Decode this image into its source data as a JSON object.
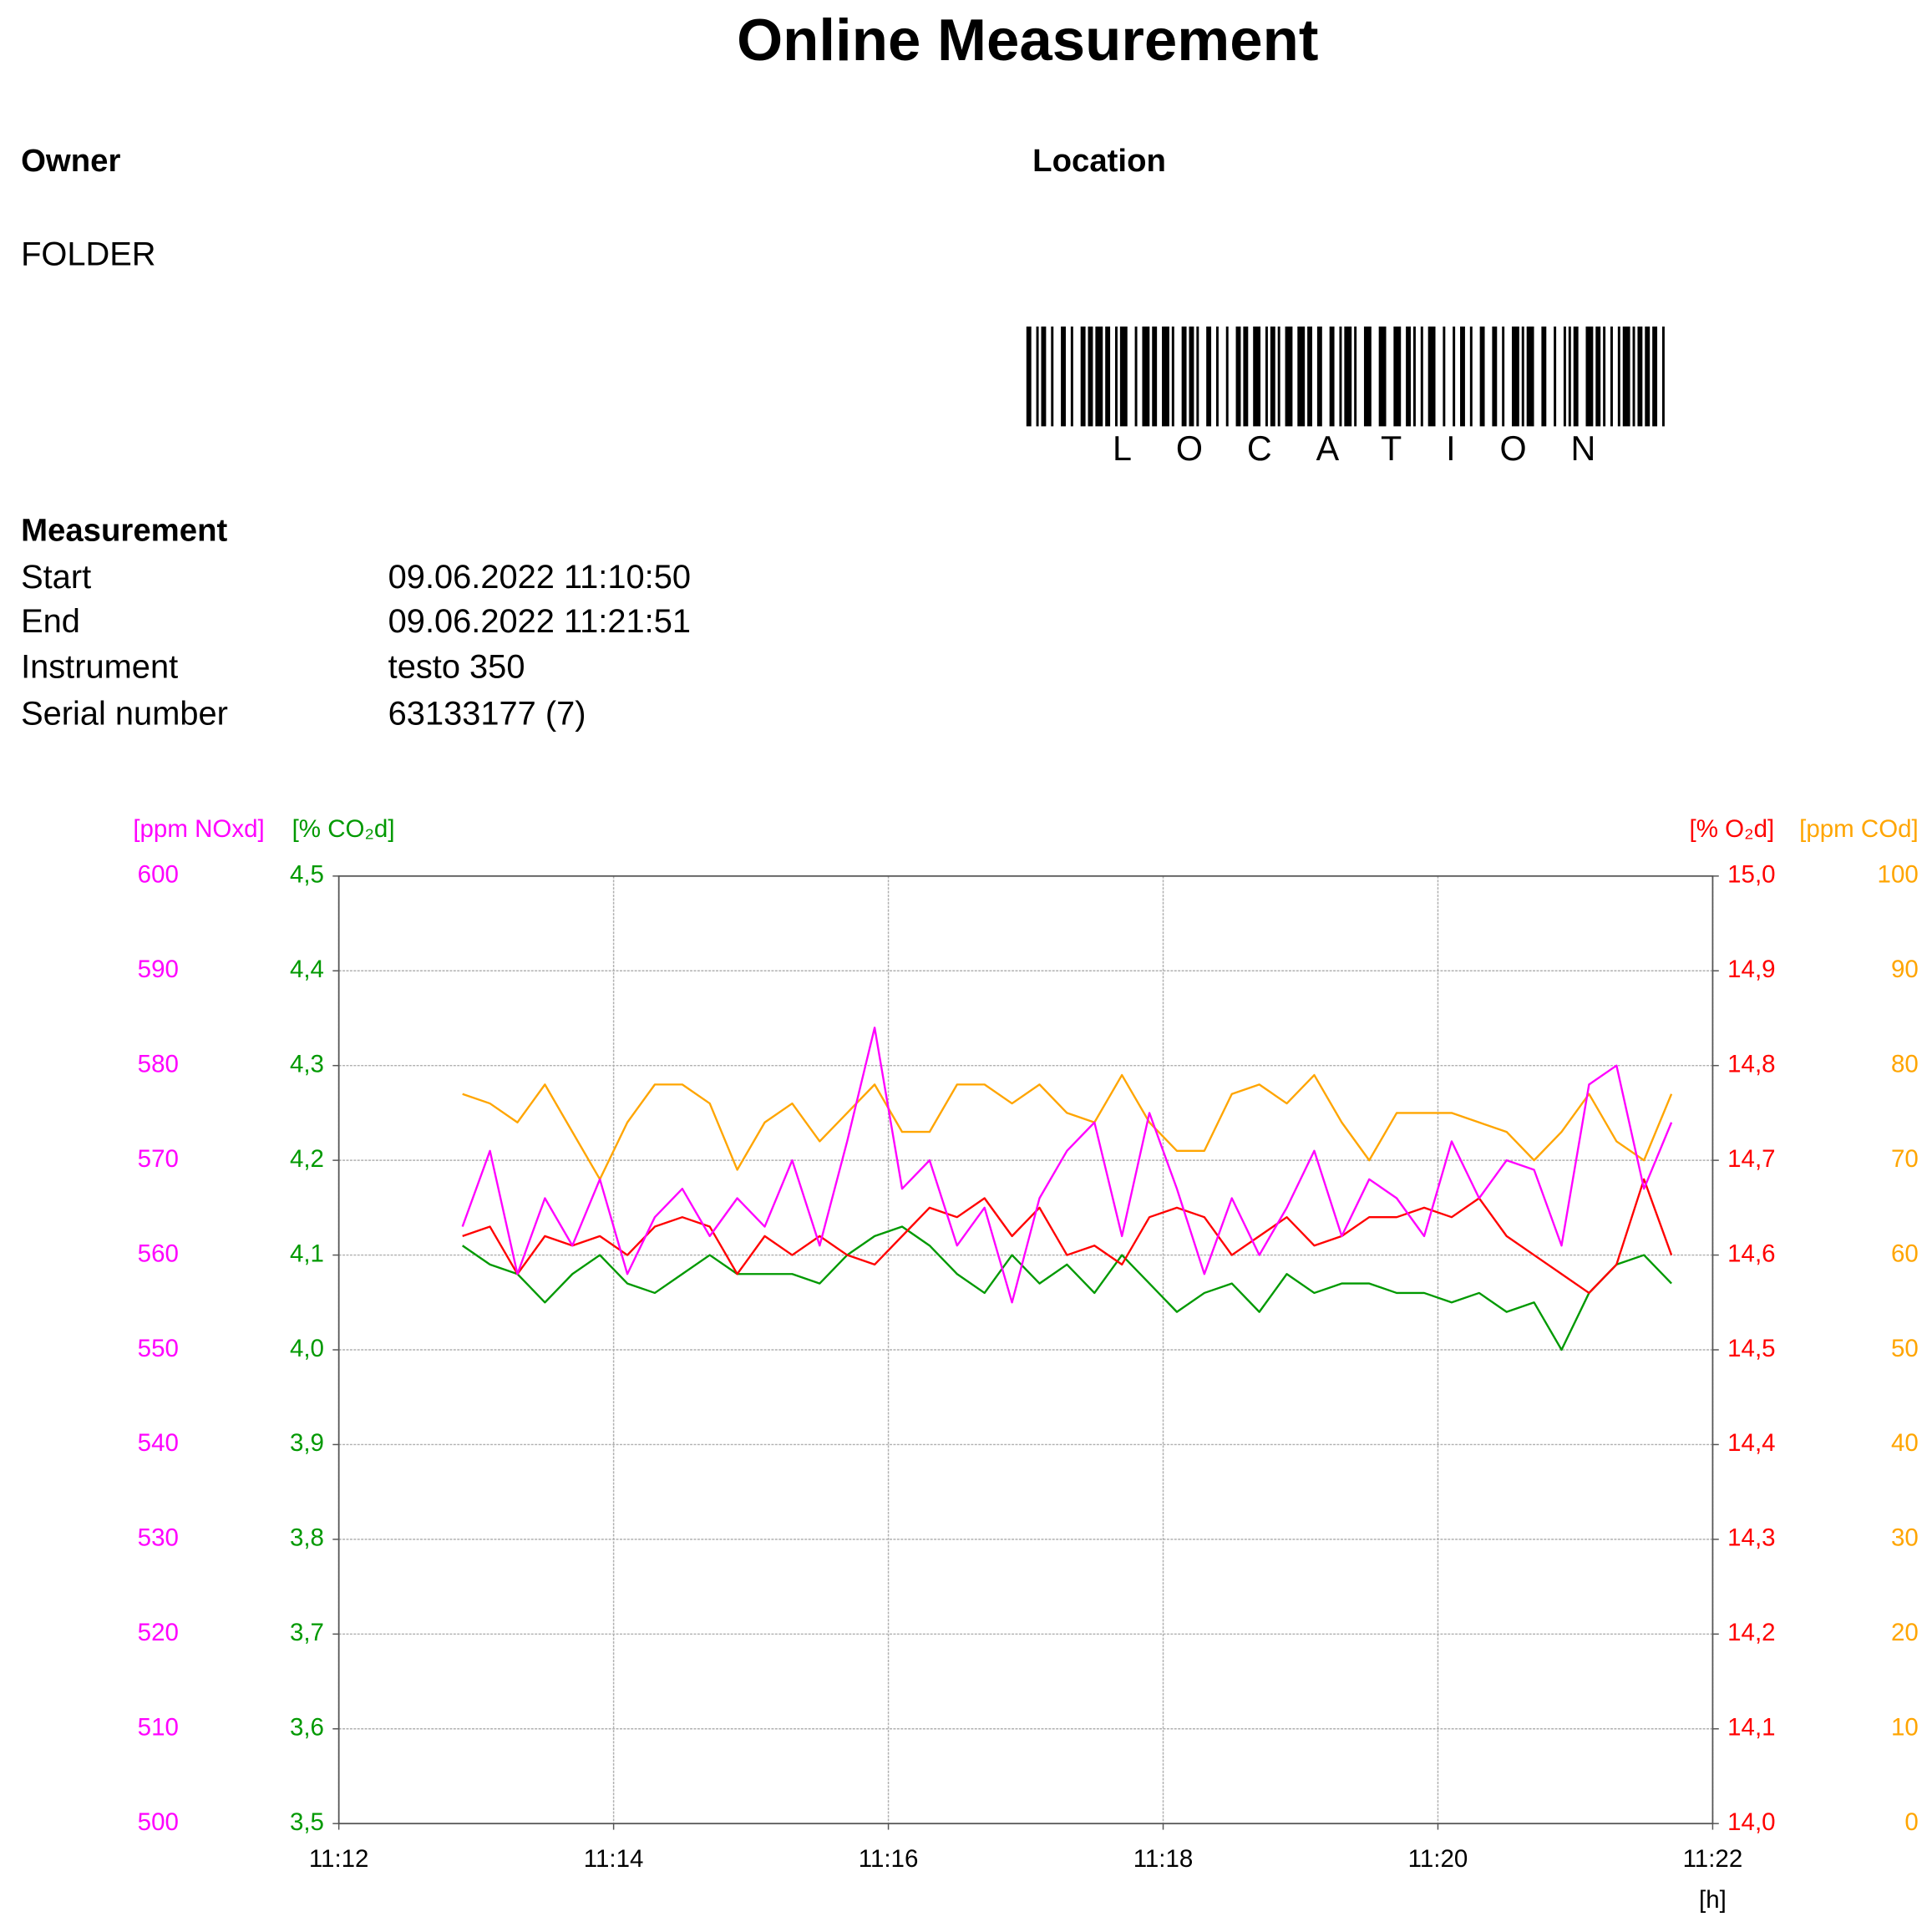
{
  "title": "Online Measurement",
  "owner": {
    "label": "Owner",
    "value": "FOLDER"
  },
  "location": {
    "label": "Location",
    "barcode_text": "LOCATION"
  },
  "measurement": {
    "heading": "Measurement",
    "rows": [
      [
        "Start",
        "09.06.2022 11:10:50"
      ],
      [
        "End",
        "09.06.2022 11:21:51"
      ],
      [
        "Instrument",
        "testo 350"
      ],
      [
        "Serial number",
        "63133177 (7)"
      ]
    ]
  },
  "chart_data": {
    "type": "line",
    "grid": true,
    "xlabel": "[h]",
    "xlim": [
      672,
      682
    ],
    "xticks": [
      {
        "value": 672,
        "label": "11:12"
      },
      {
        "value": 674,
        "label": "11:14"
      },
      {
        "value": 676,
        "label": "11:16"
      },
      {
        "value": 678,
        "label": "11:18"
      },
      {
        "value": 680,
        "label": "11:20"
      },
      {
        "value": 682,
        "label": "11:22"
      }
    ],
    "axes": [
      {
        "label": "[ppm NOxd]",
        "color": "#ff00ff",
        "side": "left",
        "lim": [
          500,
          600
        ],
        "ticks": [
          500,
          510,
          520,
          530,
          540,
          550,
          560,
          570,
          580,
          590,
          600
        ]
      },
      {
        "label": "[% CO₂d]",
        "color": "#009900",
        "side": "left",
        "lim": [
          3.5,
          4.5
        ],
        "ticks": [
          {
            "value": 3.5,
            "label": "3,5"
          },
          {
            "value": 3.6,
            "label": "3,6"
          },
          {
            "value": 3.7,
            "label": "3,7"
          },
          {
            "value": 3.8,
            "label": "3,8"
          },
          {
            "value": 3.9,
            "label": "3,9"
          },
          {
            "value": 4.0,
            "label": "4,0"
          },
          {
            "value": 4.1,
            "label": "4,1"
          },
          {
            "value": 4.2,
            "label": "4,2"
          },
          {
            "value": 4.3,
            "label": "4,3"
          },
          {
            "value": 4.4,
            "label": "4,4"
          },
          {
            "value": 4.5,
            "label": "4,5"
          }
        ]
      },
      {
        "label": "[% O₂d]",
        "color": "#ff0000",
        "side": "right",
        "lim": [
          14.0,
          15.0
        ],
        "ticks": [
          {
            "value": 14.0,
            "label": "14,0"
          },
          {
            "value": 14.1,
            "label": "14,1"
          },
          {
            "value": 14.2,
            "label": "14,2"
          },
          {
            "value": 14.3,
            "label": "14,3"
          },
          {
            "value": 14.4,
            "label": "14,4"
          },
          {
            "value": 14.5,
            "label": "14,5"
          },
          {
            "value": 14.6,
            "label": "14,6"
          },
          {
            "value": 14.7,
            "label": "14,7"
          },
          {
            "value": 14.8,
            "label": "14,8"
          },
          {
            "value": 14.9,
            "label": "14,9"
          },
          {
            "value": 15.0,
            "label": "15,0"
          }
        ]
      },
      {
        "label": "[ppm COd]",
        "color": "#ffa500",
        "side": "right",
        "lim": [
          0,
          100
        ],
        "ticks": [
          0,
          10,
          20,
          30,
          40,
          50,
          60,
          70,
          80,
          90,
          100
        ]
      }
    ],
    "x": [
      672.9,
      673.1,
      673.3,
      673.5,
      673.7,
      673.9,
      674.1,
      674.3,
      674.5,
      674.7,
      674.9,
      675.1,
      675.3,
      675.5,
      675.7,
      675.9,
      676.1,
      676.3,
      676.5,
      676.7,
      676.9,
      677.1,
      677.3,
      677.5,
      677.7,
      677.9,
      678.1,
      678.3,
      678.5,
      678.7,
      678.9,
      679.1,
      679.3,
      679.5,
      679.7,
      679.9,
      680.1,
      680.3,
      680.5,
      680.7,
      680.9,
      681.1,
      681.3,
      681.5,
      681.7
    ],
    "series": [
      {
        "axis": 3,
        "color": "#ffa500",
        "values": [
          77,
          76,
          74,
          78,
          73,
          68,
          74,
          78,
          78,
          76,
          69,
          74,
          76,
          72,
          75,
          78,
          73,
          73,
          78,
          78,
          76,
          78,
          75,
          74,
          79,
          74,
          71,
          71,
          77,
          78,
          76,
          79,
          74,
          70,
          75,
          75,
          75,
          74,
          73,
          70,
          73,
          77,
          72,
          70,
          77
        ]
      },
      {
        "axis": 1,
        "color": "#009900",
        "values": [
          4.11,
          4.09,
          4.08,
          4.05,
          4.08,
          4.1,
          4.07,
          4.06,
          4.08,
          4.1,
          4.08,
          4.08,
          4.08,
          4.07,
          4.1,
          4.12,
          4.13,
          4.11,
          4.08,
          4.06,
          4.1,
          4.07,
          4.09,
          4.06,
          4.1,
          4.07,
          4.04,
          4.06,
          4.07,
          4.04,
          4.08,
          4.06,
          4.07,
          4.07,
          4.06,
          4.06,
          4.05,
          4.06,
          4.04,
          4.05,
          4.0,
          4.06,
          4.09,
          4.1,
          4.07
        ]
      },
      {
        "axis": 2,
        "color": "#ff0000",
        "values": [
          14.62,
          14.63,
          14.58,
          14.62,
          14.61,
          14.62,
          14.6,
          14.63,
          14.64,
          14.63,
          14.58,
          14.62,
          14.6,
          14.62,
          14.6,
          14.59,
          14.62,
          14.65,
          14.64,
          14.66,
          14.62,
          14.65,
          14.6,
          14.61,
          14.59,
          14.64,
          14.65,
          14.64,
          14.6,
          14.62,
          14.64,
          14.61,
          14.62,
          14.64,
          14.64,
          14.65,
          14.64,
          14.66,
          14.62,
          14.6,
          14.58,
          14.56,
          14.59,
          14.68,
          14.6
        ]
      },
      {
        "axis": 0,
        "color": "#ff00ff",
        "values": [
          563,
          571,
          558,
          566,
          561,
          568,
          558,
          564,
          567,
          562,
          566,
          563,
          570,
          561,
          572,
          584,
          567,
          570,
          561,
          565,
          555,
          566,
          571,
          574,
          562,
          575,
          567,
          558,
          566,
          560,
          565,
          571,
          562,
          568,
          566,
          562,
          572,
          566,
          570,
          569,
          561,
          578,
          580,
          567,
          574
        ]
      }
    ]
  }
}
